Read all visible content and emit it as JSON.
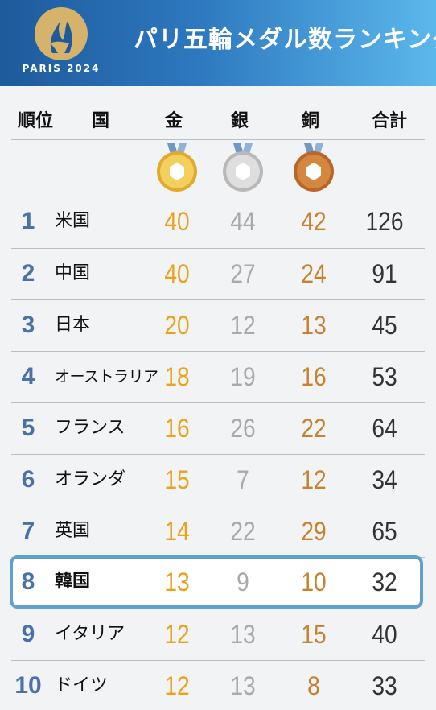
{
  "header": {
    "title": "パリ五輪メダル数ランキング",
    "logo_text": "PARIS 2024"
  },
  "columns": {
    "rank": "順位",
    "country": "国",
    "gold": "金",
    "silver": "銀",
    "bronze": "銅",
    "total": "合計"
  },
  "colors": {
    "gold": "#eba21a",
    "silver": "#a9a9a9",
    "bronze": "#c8822f",
    "rank": "#4a71a9",
    "highlight_border": "#5fa0cf"
  },
  "icons": [
    "gold-medal-icon",
    "silver-medal-icon",
    "bronze-medal-icon"
  ],
  "rows": [
    {
      "rank": "1",
      "country": "米国",
      "gold": "40",
      "silver": "44",
      "bronze": "42",
      "total": "126"
    },
    {
      "rank": "2",
      "country": "中国",
      "gold": "40",
      "silver": "27",
      "bronze": "24",
      "total": "91"
    },
    {
      "rank": "3",
      "country": "日本",
      "gold": "20",
      "silver": "12",
      "bronze": "13",
      "total": "45"
    },
    {
      "rank": "4",
      "country": "オーストラリア",
      "gold": "18",
      "silver": "19",
      "bronze": "16",
      "total": "53"
    },
    {
      "rank": "5",
      "country": "フランス",
      "gold": "16",
      "silver": "26",
      "bronze": "22",
      "total": "64"
    },
    {
      "rank": "6",
      "country": "オランダ",
      "gold": "15",
      "silver": "7",
      "bronze": "12",
      "total": "34"
    },
    {
      "rank": "7",
      "country": "英国",
      "gold": "14",
      "silver": "22",
      "bronze": "29",
      "total": "65"
    },
    {
      "rank": "8",
      "country": "韓国",
      "gold": "13",
      "silver": "9",
      "bronze": "10",
      "total": "32",
      "highlighted": true
    },
    {
      "rank": "9",
      "country": "イタリア",
      "gold": "12",
      "silver": "13",
      "bronze": "15",
      "total": "40"
    },
    {
      "rank": "10",
      "country": "ドイツ",
      "gold": "12",
      "silver": "13",
      "bronze": "8",
      "total": "33"
    }
  ]
}
